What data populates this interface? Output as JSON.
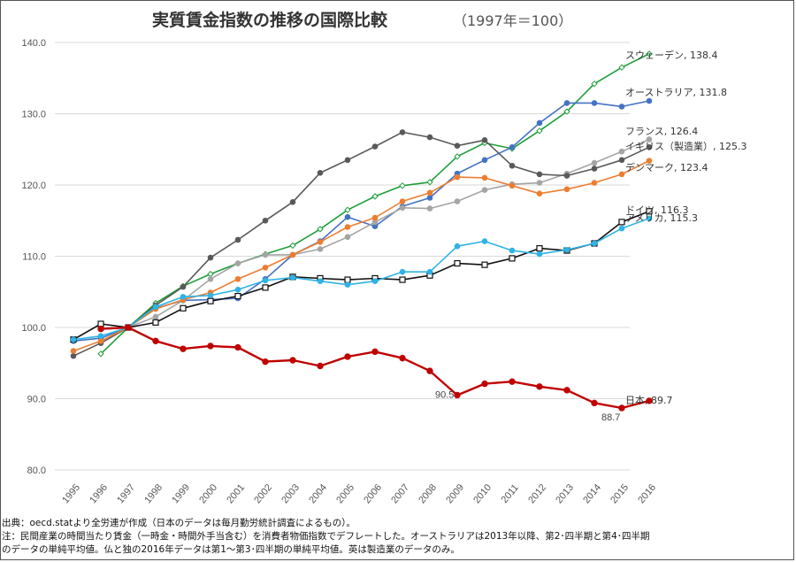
{
  "chart_data": {
    "type": "line",
    "title": "実質賃金指数の推移の国際比較",
    "subtitle": "（1997年＝100）",
    "ylabel": "",
    "xlabel": "",
    "ylim": [
      80,
      140
    ],
    "y_ticks": [
      "80.0",
      "90.0",
      "100.0",
      "110.0",
      "120.0",
      "130.0",
      "140.0"
    ],
    "grid": true,
    "categories": [
      "1995",
      "1996",
      "1997",
      "1998",
      "1999",
      "2000",
      "2001",
      "2002",
      "2003",
      "2004",
      "2005",
      "2006",
      "2007",
      "2008",
      "2009",
      "2010",
      "2011",
      "2012",
      "2013",
      "2014",
      "2015",
      "2016"
    ],
    "series": [
      {
        "name": "スウェーデン",
        "end_label": "138.4",
        "color": "#1f9e3b",
        "marker": "diamond",
        "values": [
          null,
          96.3,
          100.0,
          103.4,
          105.8,
          107.5,
          109.0,
          110.3,
          111.5,
          113.8,
          116.5,
          118.4,
          119.9,
          120.4,
          124.0,
          125.9,
          125.1,
          127.6,
          130.3,
          134.2,
          136.5,
          138.4
        ]
      },
      {
        "name": "オーストラリア",
        "end_label": "131.8",
        "color": "#4472c4",
        "marker": "circle",
        "values": [
          98.1,
          98.5,
          100.0,
          102.7,
          103.8,
          103.9,
          104.1,
          106.8,
          110.2,
          112.1,
          115.5,
          114.2,
          117.0,
          118.2,
          121.6,
          123.5,
          125.3,
          128.7,
          131.5,
          131.5,
          131.0,
          131.8
        ]
      },
      {
        "name": "フランス",
        "end_label": "126.4",
        "color": "#a5a5a5",
        "marker": "circle",
        "values": [
          null,
          null,
          100.0,
          101.5,
          103.8,
          106.8,
          109.0,
          110.2,
          110.2,
          111.0,
          112.7,
          114.8,
          116.8,
          116.7,
          117.7,
          119.3,
          120.1,
          120.3,
          121.6,
          123.1,
          124.7,
          126.4
        ]
      },
      {
        "name": "イギリス（製造業）",
        "end_label": "125.3",
        "color": "#595959",
        "marker": "circle",
        "values": [
          96.0,
          97.8,
          100.0,
          103.1,
          105.7,
          109.8,
          112.3,
          115.0,
          117.6,
          121.7,
          123.5,
          125.4,
          127.4,
          126.7,
          125.5,
          126.3,
          122.7,
          121.5,
          121.3,
          122.3,
          123.5,
          125.3
        ]
      },
      {
        "name": "デンマーク",
        "end_label": "123.4",
        "color": "#ed7d31",
        "marker": "circle",
        "values": [
          96.7,
          98.1,
          100.0,
          102.6,
          103.9,
          104.9,
          106.8,
          108.4,
          110.2,
          112.0,
          114.1,
          115.4,
          117.7,
          118.9,
          121.1,
          121.0,
          119.9,
          118.8,
          119.4,
          120.3,
          121.5,
          123.4
        ]
      },
      {
        "name": "ドイツ",
        "end_label": "116.3",
        "color": "#111111",
        "marker": "square",
        "values": [
          98.3,
          100.5,
          100.0,
          100.7,
          102.7,
          103.7,
          104.4,
          105.6,
          107.1,
          106.9,
          106.7,
          106.9,
          106.7,
          107.3,
          109.0,
          108.8,
          109.7,
          111.1,
          110.8,
          111.8,
          114.8,
          116.3
        ]
      },
      {
        "name": "アメリカ",
        "end_label": "115.3",
        "color": "#2eb3e6",
        "marker": "circle",
        "values": [
          98.3,
          98.8,
          100.0,
          102.9,
          104.3,
          104.5,
          105.3,
          106.6,
          107.0,
          106.5,
          106.0,
          106.5,
          107.8,
          107.8,
          111.4,
          112.1,
          110.8,
          110.3,
          110.9,
          111.8,
          113.9,
          115.3
        ]
      },
      {
        "name": "日本",
        "end_label": "89.7",
        "color": "#c00000",
        "marker": "circle",
        "values": [
          null,
          99.8,
          100.0,
          98.1,
          97.0,
          97.4,
          97.2,
          95.2,
          95.4,
          94.6,
          95.9,
          96.6,
          95.7,
          93.9,
          90.5,
          92.1,
          92.4,
          91.7,
          91.2,
          89.4,
          88.7,
          89.7
        ]
      }
    ],
    "annotations": [
      "90.5",
      "88.7"
    ]
  },
  "footnotes": [
    "出典：oecd.statより全労連が作成（日本のデータは毎月勤労統計調査によるもの）。",
    "注：民間産業の時間当たり賃金（一時金・時間外手当含む）を消費者物価指数でデフレートした。オーストラリアは2013年以降、第2･四半期と第4･四半期",
    "のデータの単純平均値。仏と独の2016年データは第1～第3･四半期の単純平均値。英は製造業のデータのみ。"
  ]
}
